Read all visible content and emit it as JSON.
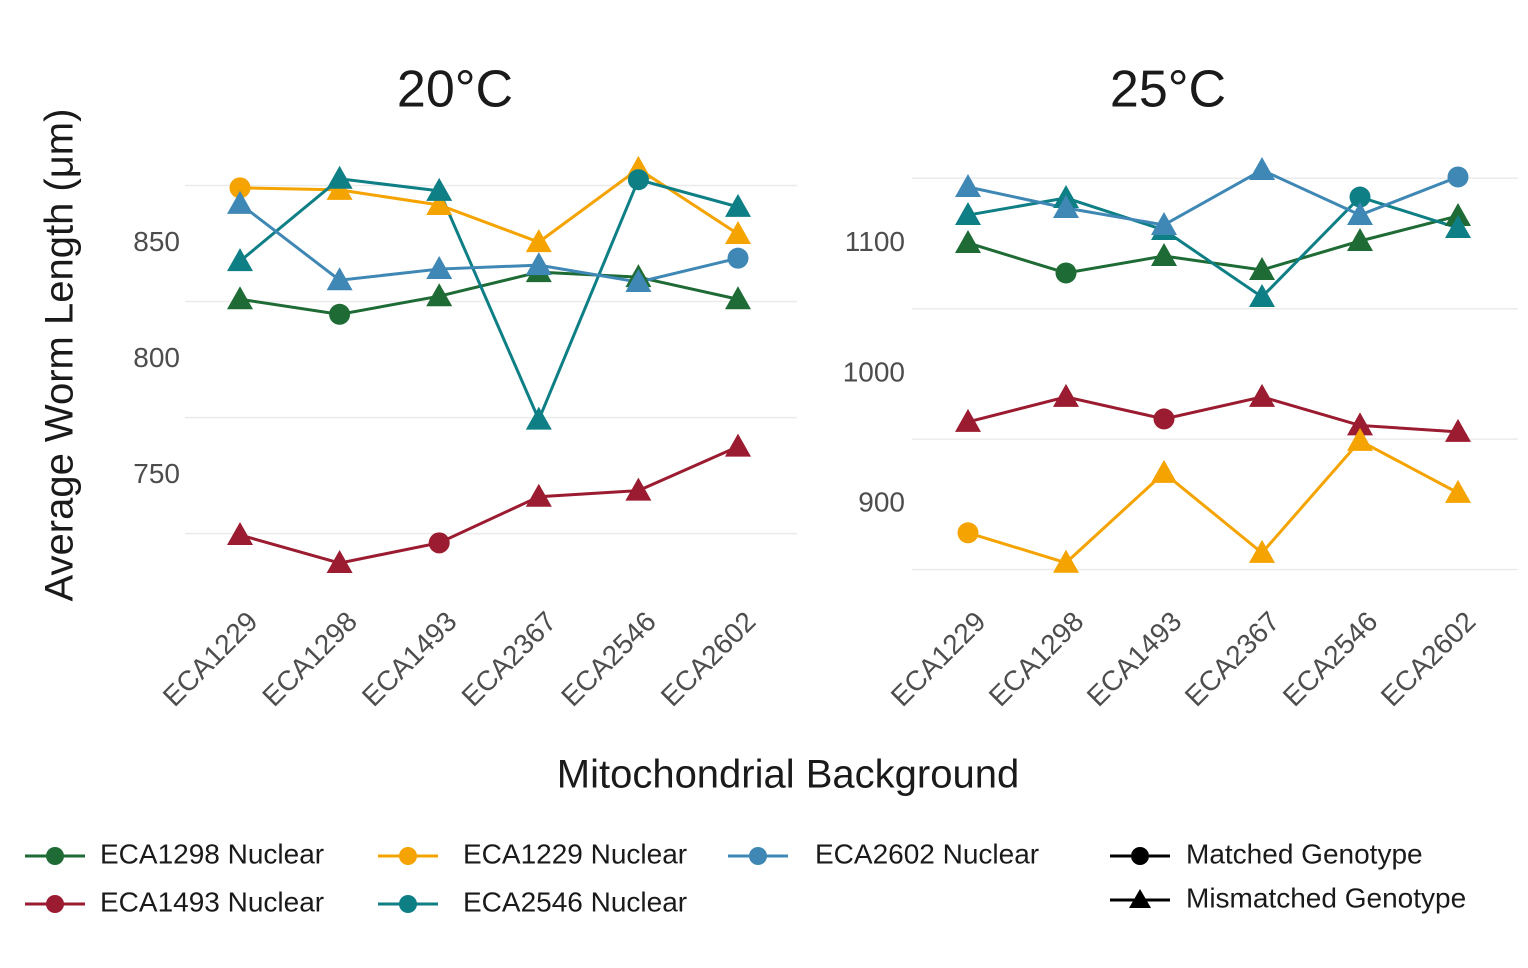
{
  "y_label": "Average Worm Length (μm)",
  "x_label": "Mitochondrial Background",
  "shape_legend": [
    {
      "name": "Matched Genotype",
      "shape": "circle"
    },
    {
      "name": "Mismatched Genotype",
      "shape": "triangle"
    }
  ],
  "chart_data": [
    {
      "type": "line",
      "title": "20°C",
      "categories": [
        "ECA1229",
        "ECA1298",
        "ECA1493",
        "ECA2367",
        "ECA2546",
        "ECA2602"
      ],
      "ylim": [
        705,
        886
      ],
      "yticks": [
        750,
        800,
        850
      ],
      "ygrid": [
        725,
        775,
        825,
        875
      ],
      "series": [
        {
          "name": "ECA1298 Nuclear",
          "color": "#1e6b35",
          "values": [
            826.0,
            819.5,
            827.3,
            837.7,
            835.5,
            826.0
          ],
          "shapes": [
            "triangle",
            "circle",
            "triangle",
            "triangle",
            "triangle",
            "triangle"
          ]
        },
        {
          "name": "ECA1493 Nuclear",
          "color": "#9b1b30",
          "values": [
            724.4,
            712.3,
            721.0,
            740.9,
            743.5,
            762.5
          ],
          "shapes": [
            "triangle",
            "triangle",
            "circle",
            "triangle",
            "triangle",
            "triangle"
          ]
        },
        {
          "name": "ECA1229 Nuclear",
          "color": "#f5a300",
          "values": [
            874.0,
            873.1,
            866.6,
            850.6,
            882.2,
            854.1
          ],
          "shapes": [
            "circle",
            "triangle",
            "triangle",
            "triangle",
            "triangle",
            "triangle"
          ]
        },
        {
          "name": "ECA2546 Nuclear",
          "color": "#0f7f86",
          "values": [
            842.4,
            877.9,
            872.7,
            774.1,
            877.5,
            865.8
          ],
          "shapes": [
            "triangle",
            "triangle",
            "triangle",
            "triangle",
            "circle",
            "triangle"
          ]
        },
        {
          "name": "ECA2602 Nuclear",
          "color": "#3f88b5",
          "values": [
            867.1,
            834.2,
            839.0,
            840.7,
            833.4,
            843.7
          ],
          "shapes": [
            "triangle",
            "triangle",
            "triangle",
            "triangle",
            "triangle",
            "circle"
          ]
        }
      ]
    },
    {
      "type": "line",
      "title": "25°C",
      "categories": [
        "ECA1229",
        "ECA1298",
        "ECA1493",
        "ECA2367",
        "ECA2546",
        "ECA2602"
      ],
      "ylim": [
        842,
        1164
      ],
      "yticks": [
        900,
        1000,
        1100
      ],
      "ygrid": [
        850,
        950,
        1050,
        1150
      ],
      "series": [
        {
          "name": "ECA1298 Nuclear",
          "color": "#1e6b35",
          "values": [
            1100.4,
            1077.4,
            1090.4,
            1079.7,
            1101.9,
            1121.1
          ],
          "shapes": [
            "triangle",
            "circle",
            "triangle",
            "triangle",
            "triangle",
            "triangle"
          ]
        },
        {
          "name": "ECA1493 Nuclear",
          "color": "#9b1b30",
          "values": [
            963.2,
            982.4,
            965.5,
            982.4,
            960.5,
            955.6
          ],
          "shapes": [
            "triangle",
            "triangle",
            "circle",
            "triangle",
            "triangle",
            "triangle"
          ]
        },
        {
          "name": "ECA1229 Nuclear",
          "color": "#f5a300",
          "values": [
            878.2,
            855.2,
            924.1,
            862.8,
            948.7,
            908.8
          ],
          "shapes": [
            "circle",
            "triangle",
            "triangle",
            "triangle",
            "triangle",
            "triangle"
          ]
        },
        {
          "name": "ECA2546 Nuclear",
          "color": "#0f7f86",
          "values": [
            1121.8,
            1134.9,
            1110.3,
            1059.0,
            1135.6,
            1111.9
          ],
          "shapes": [
            "triangle",
            "triangle",
            "triangle",
            "triangle",
            "circle",
            "triangle"
          ]
        },
        {
          "name": "ECA2602 Nuclear",
          "color": "#3f88b5",
          "values": [
            1143.3,
            1127.2,
            1114.2,
            1156.3,
            1121.8,
            1151.0
          ],
          "shapes": [
            "triangle",
            "triangle",
            "triangle",
            "triangle",
            "triangle",
            "circle"
          ]
        }
      ]
    }
  ]
}
